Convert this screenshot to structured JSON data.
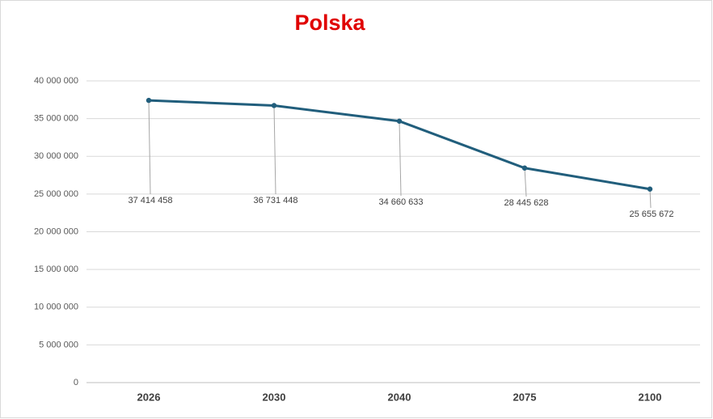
{
  "chart_data": {
    "type": "line",
    "title": "Polska",
    "title_color": "#e00000",
    "categories": [
      "2026",
      "2030",
      "2040",
      "2075",
      "2100"
    ],
    "series": [
      {
        "name": "Polska",
        "color": "#215e7c",
        "values": [
          37414458,
          36731448,
          34660633,
          28445628,
          25655672
        ],
        "value_labels": [
          "37 414 458",
          "36 731 448",
          "34 660 633",
          "28 445 628",
          "25 655 672"
        ]
      }
    ],
    "ylim": [
      0,
      40000000
    ],
    "yticks": [
      0,
      {
        "value": 5000000,
        "label": "5 000 000"
      },
      {
        "value": 10000000,
        "label": "10 000 000"
      },
      {
        "value": 15000000,
        "label": "15 000 000"
      },
      {
        "value": 20000000,
        "label": "20 000 000"
      },
      {
        "value": 25000000,
        "label": "25 000 000"
      },
      {
        "value": 30000000,
        "label": "30 000 000"
      },
      {
        "value": 35000000,
        "label": "35 000 000"
      },
      {
        "value": 40000000,
        "label": "40 000 000"
      }
    ],
    "grid": true
  }
}
